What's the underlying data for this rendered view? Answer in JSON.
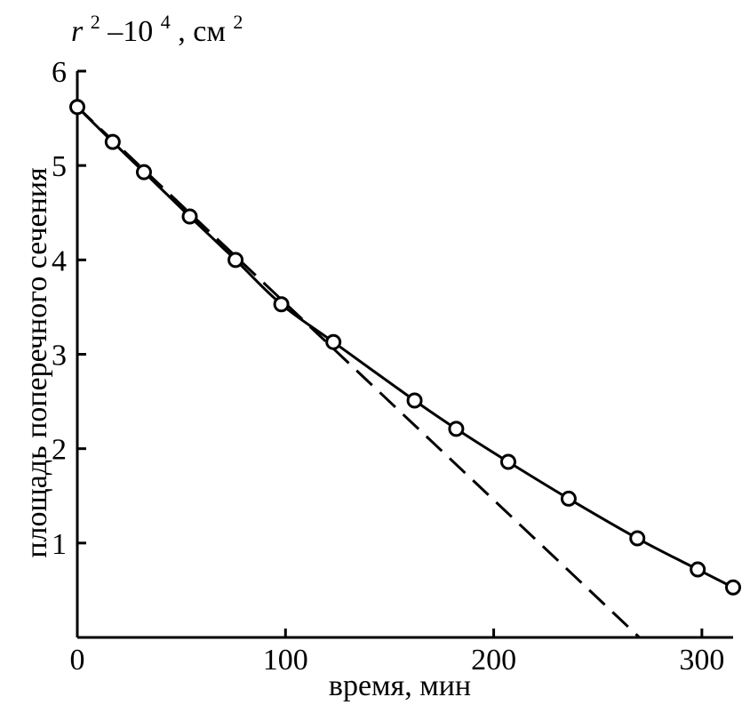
{
  "chart_data": {
    "type": "line",
    "title": "",
    "xlabel": "время, мин",
    "ylabel": "площадь поперечного сечения",
    "yunit": {
      "base": "r",
      "sup1": "2",
      "mid": "–10",
      "sup2": "4",
      "unit": ", см",
      "sup3": "2"
    },
    "xlim": [
      0,
      315
    ],
    "ylim": [
      0,
      6
    ],
    "xticks": [
      0,
      100,
      200,
      300
    ],
    "yticks": [
      1,
      2,
      3,
      4,
      5,
      6
    ],
    "xtick_labels": [
      "0",
      "100",
      "200",
      "300"
    ],
    "ytick_labels": [
      "1",
      "2",
      "3",
      "4",
      "5",
      "6"
    ],
    "grid": false,
    "series": [
      {
        "style": "solid-with-markers",
        "marker": "open-circle",
        "x": [
          0,
          17,
          32,
          54,
          76,
          98,
          123,
          162,
          182,
          207,
          236,
          269,
          298,
          315
        ],
        "y": [
          5.62,
          5.25,
          4.93,
          4.46,
          4.0,
          3.53,
          3.13,
          2.51,
          2.21,
          1.86,
          1.47,
          1.05,
          0.72,
          0.53
        ]
      },
      {
        "style": "dashed",
        "x": [
          0,
          270
        ],
        "y": [
          5.62,
          0.0
        ]
      }
    ]
  }
}
